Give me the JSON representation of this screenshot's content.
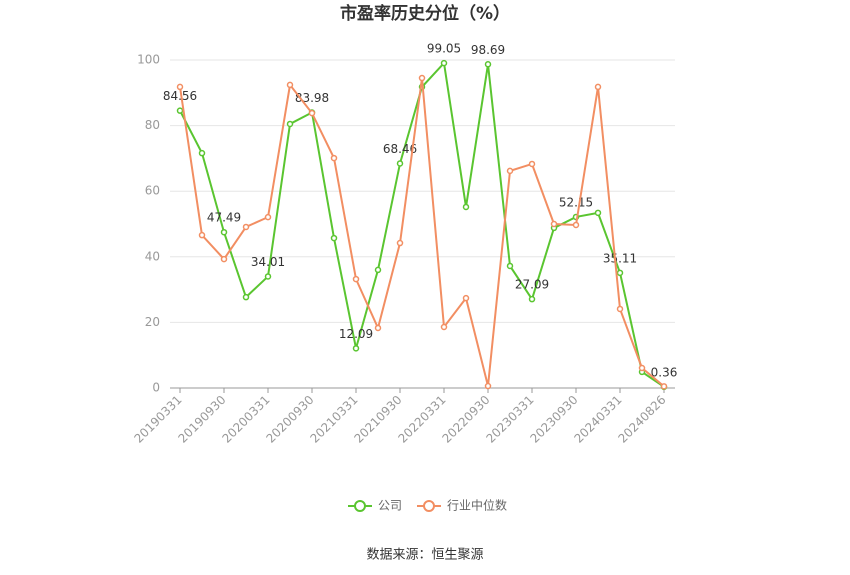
{
  "chart_data": {
    "type": "line",
    "title": "市盈率历史分位（%）",
    "categories": [
      "20190331",
      null,
      "20190930",
      null,
      "20200331",
      null,
      "20200930",
      null,
      "20210331",
      null,
      "20210930",
      null,
      "20220331",
      null,
      "20220930",
      null,
      "20230331",
      null,
      "20230930",
      null,
      "20240331",
      null,
      "20240826"
    ],
    "series": [
      {
        "name": "公司",
        "color": "#5ac530",
        "values": [
          84.56,
          71.6,
          47.49,
          27.7,
          34.01,
          80.5,
          83.98,
          45.7,
          12.09,
          36,
          68.46,
          91.8,
          99.05,
          55.2,
          98.69,
          37.2,
          27.09,
          48.8,
          52.15,
          53.4,
          35.11,
          4.9,
          0.36
        ],
        "value_labels": [
          "84.56",
          null,
          "47.49",
          null,
          "34.01",
          null,
          "83.98",
          null,
          "12.09",
          null,
          "68.46",
          null,
          "99.05",
          null,
          "98.69",
          null,
          "27.09",
          null,
          "52.15",
          null,
          "35.11",
          null,
          "0.36"
        ]
      },
      {
        "name": "行业中位数",
        "color": "#f28e62",
        "values": [
          91.8,
          46.6,
          39.3,
          49.1,
          52.1,
          92.4,
          83.8,
          70.1,
          33.2,
          18.3,
          44.2,
          94.5,
          18.6,
          27.4,
          0.6,
          66.2,
          68.3,
          50,
          49.7,
          91.8,
          24.1,
          6.1,
          0.5
        ]
      }
    ],
    "ylim": [
      0,
      100
    ],
    "yticks": [
      0,
      20,
      40,
      60,
      80,
      100
    ],
    "grid": true,
    "source": "数据来源：恒生聚源"
  }
}
